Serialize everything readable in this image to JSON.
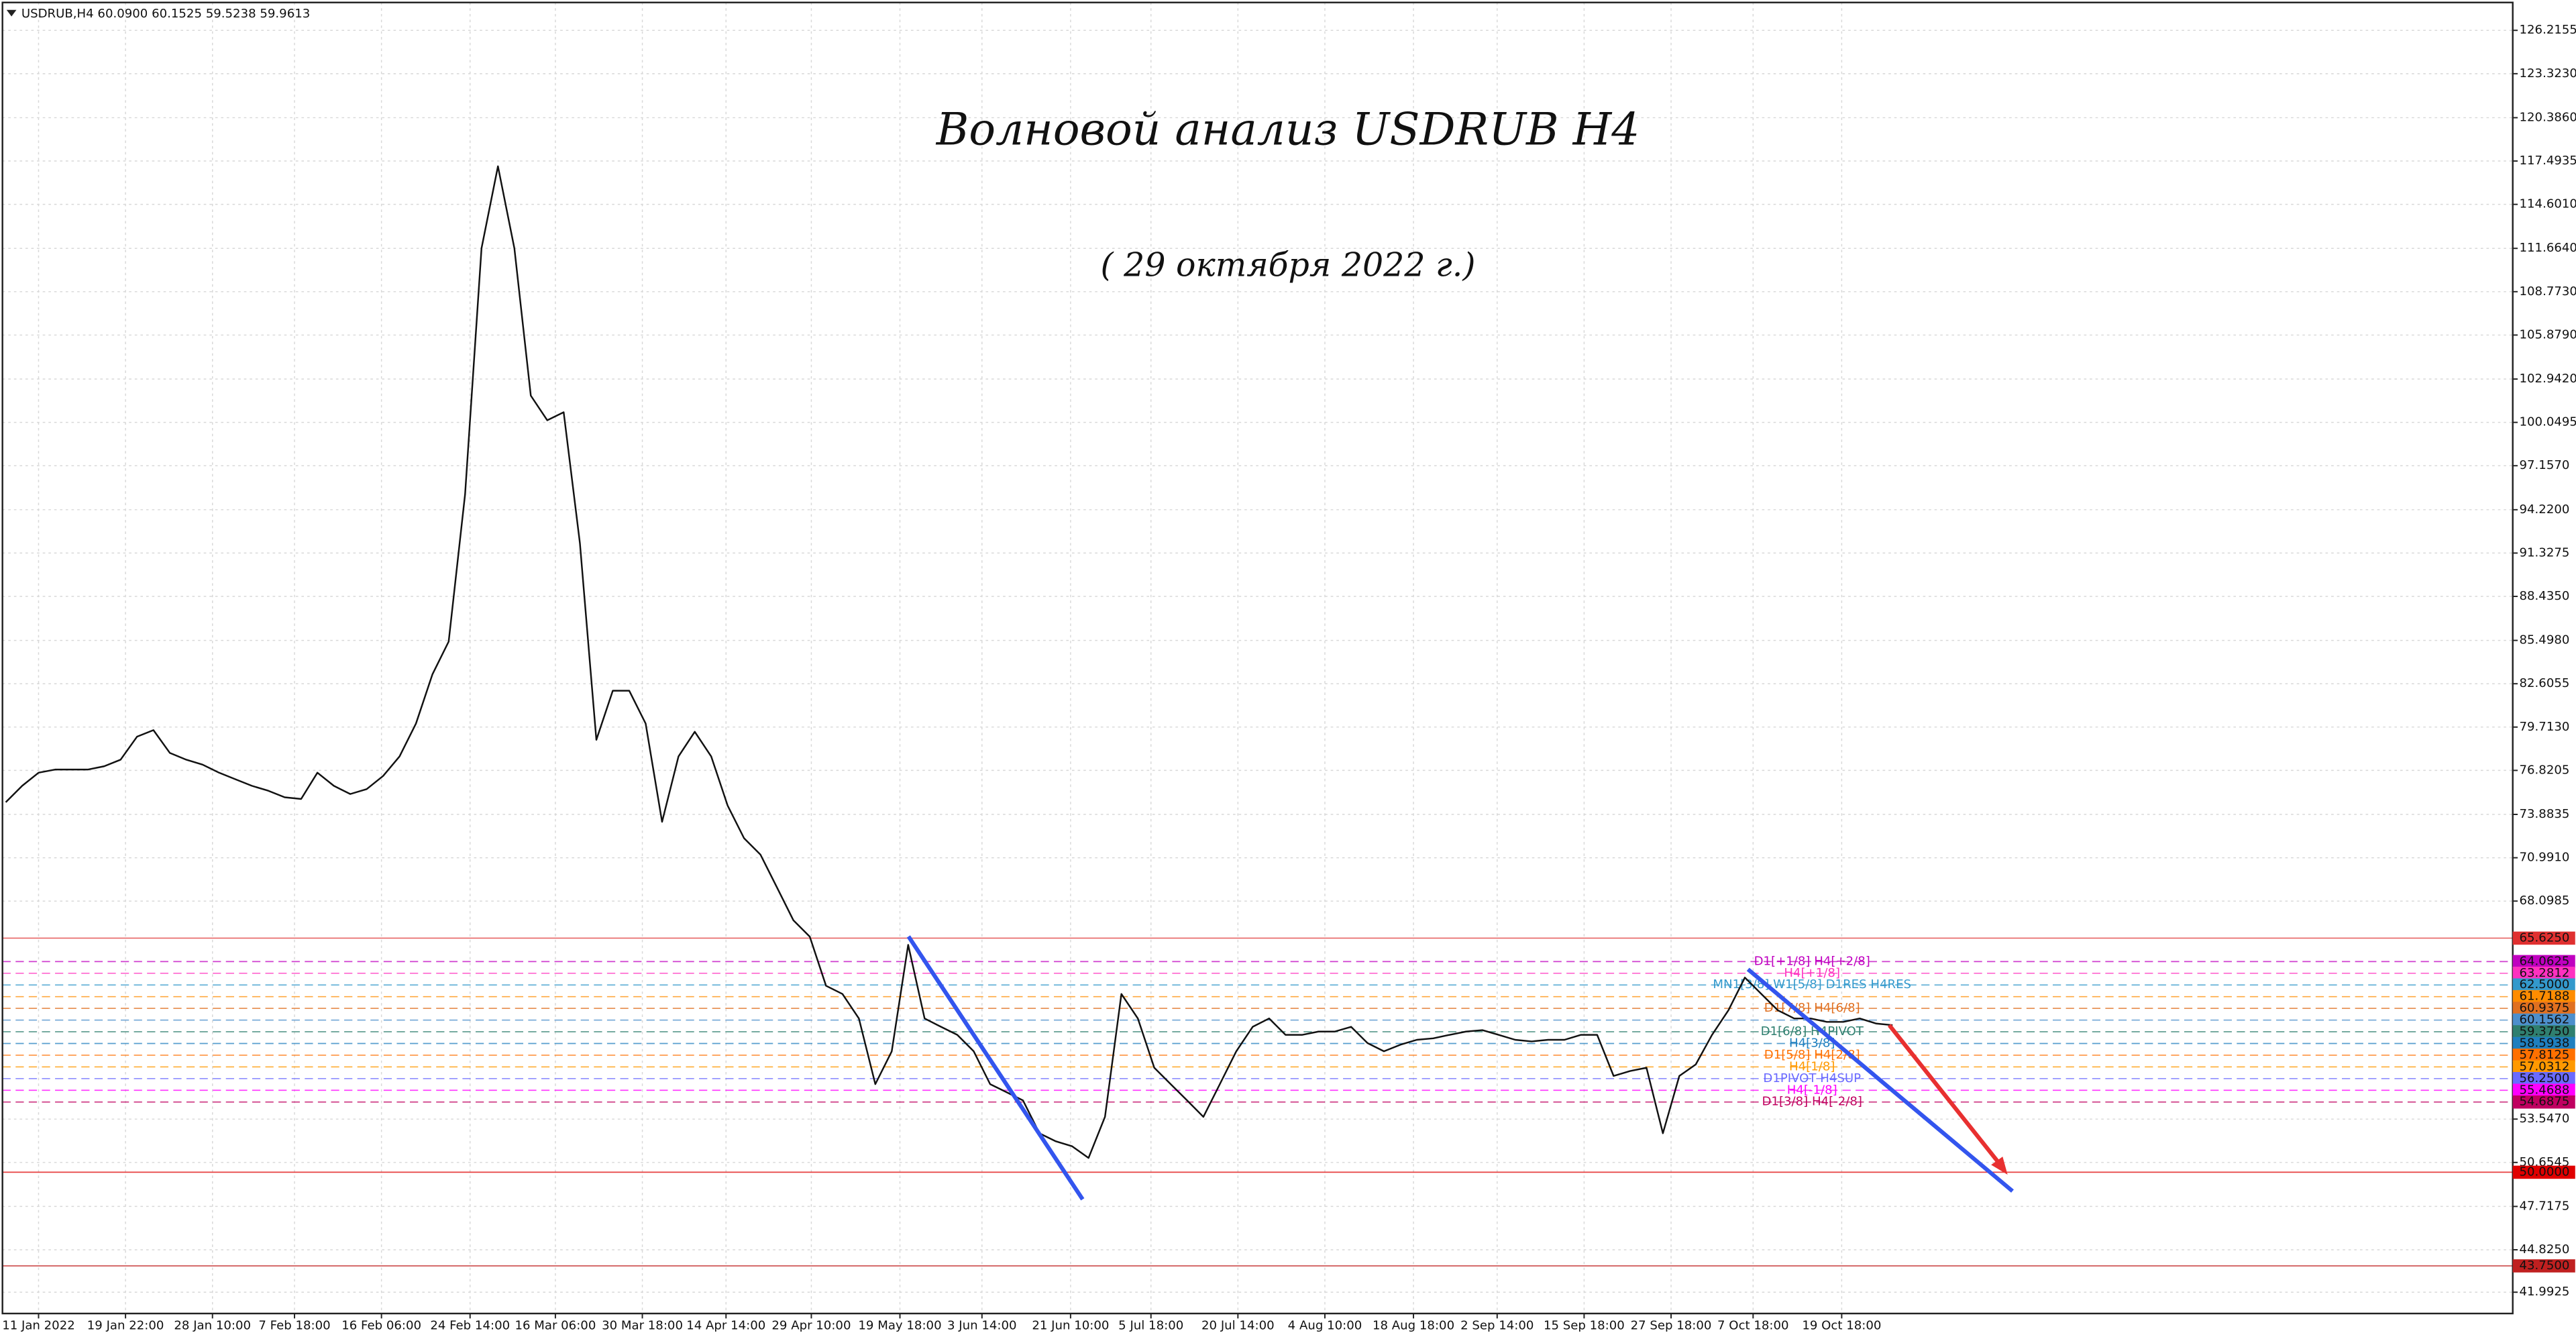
{
  "header": "USDRUB,H4  60.0900 60.1525 59.5238 59.9613",
  "chart_data": {
    "type": "line",
    "title": "Волновой анализ USDRUB H4",
    "subtitle": "( 29 октября 2022 г.)",
    "color": "#111111",
    "grid": true,
    "values": [
      74.7,
      75.79,
      76.67,
      76.88,
      76.88,
      76.88,
      77.1,
      77.54,
      79.07,
      79.51,
      77.98,
      77.54,
      77.21,
      76.67,
      76.23,
      75.79,
      75.46,
      75.02,
      74.91,
      76.67,
      75.79,
      75.24,
      75.57,
      76.45,
      77.76,
      79.95,
      83.23,
      85.42,
      95.26,
      111.67,
      117.14,
      111.67,
      101.83,
      100.19,
      100.73,
      91.98,
      78.86,
      82.14,
      82.14,
      79.95,
      73.39,
      77.76,
      79.4,
      77.76,
      74.48,
      72.29,
      71.2,
      69.01,
      66.82,
      65.73,
      62.45,
      61.9,
      60.26,
      55.88,
      58.07,
      65.18,
      60.26,
      59.71,
      59.17,
      58.07,
      55.88,
      55.34,
      54.79,
      52.6,
      52.06,
      51.73,
      50.96,
      53.7,
      61.9,
      60.26,
      56.98,
      55.88,
      54.79,
      53.7,
      55.88,
      58.07,
      59.71,
      60.26,
      59.17,
      59.17,
      59.39,
      59.39,
      59.71,
      58.62,
      58.07,
      58.51,
      58.84,
      58.94,
      59.17,
      59.39,
      59.49,
      59.17,
      58.84,
      58.73,
      58.84,
      58.84,
      59.17,
      59.17,
      56.43,
      56.76,
      56.98,
      52.6,
      56.43,
      57.2,
      59.17,
      60.81,
      63.0,
      61.9,
      60.81,
      60.26,
      60.26,
      60.04,
      60.04,
      60.26,
      59.93,
      59.82
    ],
    "xlim": [
      -0.2,
      152.8
    ],
    "xticks": [
      {
        "value": 2.0,
        "label": "11 Jan 2022"
      },
      {
        "value": 7.3,
        "label": "19 Jan 22:00"
      },
      {
        "value": 12.6,
        "label": "28 Jan 10:00"
      },
      {
        "value": 17.6,
        "label": "7 Feb 18:00"
      },
      {
        "value": 22.9,
        "label": "16 Feb 06:00"
      },
      {
        "value": 28.3,
        "label": "24 Feb 14:00"
      },
      {
        "value": 33.5,
        "label": "16 Mar 06:00"
      },
      {
        "value": 38.8,
        "label": "30 Mar 18:00"
      },
      {
        "value": 43.9,
        "label": "14 Apr 14:00"
      },
      {
        "value": 49.1,
        "label": "29 Apr 10:00"
      },
      {
        "value": 54.5,
        "label": "19 May 18:00"
      },
      {
        "value": 59.5,
        "label": "3 Jun 14:00"
      },
      {
        "value": 64.9,
        "label": "21 Jun 10:00"
      },
      {
        "value": 69.8,
        "label": "5 Jul 18:00"
      },
      {
        "value": 75.1,
        "label": "20 Jul 14:00"
      },
      {
        "value": 80.4,
        "label": "4 Aug 10:00"
      },
      {
        "value": 85.8,
        "label": "18 Aug 18:00"
      },
      {
        "value": 90.9,
        "label": "2 Sep 14:00"
      },
      {
        "value": 96.2,
        "label": "15 Sep 18:00"
      },
      {
        "value": 101.5,
        "label": "27 Sep 18:00"
      },
      {
        "value": 106.5,
        "label": "7 Oct 18:00"
      },
      {
        "value": 111.9,
        "label": "19 Oct 18:00"
      }
    ],
    "ylim": [
      40.571,
      128.075
    ],
    "yticks": [
      {
        "value": 126.2155,
        "label": "126.2155"
      },
      {
        "value": 123.323,
        "label": "123.3230"
      },
      {
        "value": 120.386,
        "label": "120.3860"
      },
      {
        "value": 117.4935,
        "label": "117.4935"
      },
      {
        "value": 114.601,
        "label": "114.6010"
      },
      {
        "value": 111.664,
        "label": "111.6640"
      },
      {
        "value": 108.773,
        "label": "108.7730"
      },
      {
        "value": 105.879,
        "label": "105.8790"
      },
      {
        "value": 102.942,
        "label": "102.9420"
      },
      {
        "value": 100.0495,
        "label": "100.0495"
      },
      {
        "value": 97.157,
        "label": "97.1570"
      },
      {
        "value": 94.22,
        "label": "94.2200"
      },
      {
        "value": 91.3275,
        "label": "91.3275"
      },
      {
        "value": 88.435,
        "label": "88.4350"
      },
      {
        "value": 85.498,
        "label": "85.4980"
      },
      {
        "value": 82.6055,
        "label": "82.6055"
      },
      {
        "value": 79.713,
        "label": "79.7130"
      },
      {
        "value": 76.8205,
        "label": "76.8205"
      },
      {
        "value": 73.8835,
        "label": "73.8835"
      },
      {
        "value": 70.991,
        "label": "70.9910"
      },
      {
        "value": 68.0985,
        "label": "68.0985"
      },
      {
        "value": 53.547,
        "label": "53.5470"
      },
      {
        "value": 50.6545,
        "label": "50.6545"
      },
      {
        "value": 47.7175,
        "label": "47.7175"
      },
      {
        "value": 44.825,
        "label": "44.8250"
      },
      {
        "value": 41.9925,
        "label": "41.9925"
      }
    ],
    "levels": [
      {
        "value": 65.625,
        "label": "65.6250",
        "color": "#e03030"
      },
      {
        "value": 64.0625,
        "label": "64.0625",
        "color": "#c000c0",
        "note": "D1[+1/8] H4[+2/8]"
      },
      {
        "value": 63.2812,
        "label": "63.2812",
        "color": "#ff30c0",
        "note": "H4[+1/8]"
      },
      {
        "value": 62.5,
        "label": "62.5000",
        "color": "#3399cc",
        "note": "MN1[3/8] W1[5/8] D1RES H4RES"
      },
      {
        "value": 61.7188,
        "label": "61.7188",
        "color": "#ff8c00"
      },
      {
        "value": 60.9375,
        "label": "60.9375",
        "color": "#e07020",
        "note": "D1[7/8] H4[6/8]"
      },
      {
        "value": 60.1562,
        "label": "60.1562",
        "color": "#4d8fcc"
      },
      {
        "value": 59.375,
        "label": "59.3750",
        "color": "#2f7f6f",
        "note": "D1[6/8] H4PIVOT"
      },
      {
        "value": 58.5938,
        "label": "58.5938",
        "color": "#1f7fbf",
        "note": "H4[3/8]"
      },
      {
        "value": 57.8125,
        "label": "57.8125",
        "color": "#ff7000",
        "note": "D1[5/8] H4[2/8]"
      },
      {
        "value": 57.0312,
        "label": "57.0312",
        "color": "#ff9900",
        "note": "H4[1/8]"
      },
      {
        "value": 56.25,
        "label": "56.2500",
        "color": "#6a6aff",
        "note": "D1PIVOT H4SUP"
      },
      {
        "value": 55.4688,
        "label": "55.4688",
        "color": "#ff00ff",
        "note": "H4[-1/8]"
      },
      {
        "value": 54.6875,
        "label": "54.6875",
        "color": "#c00060",
        "note": "D1[3/8] H4[-2/8]"
      },
      {
        "value": 50.0,
        "label": "50.0000",
        "color": "#e00000"
      },
      {
        "value": 43.75,
        "label": "43.7500",
        "color": "#c02020"
      }
    ]
  }
}
